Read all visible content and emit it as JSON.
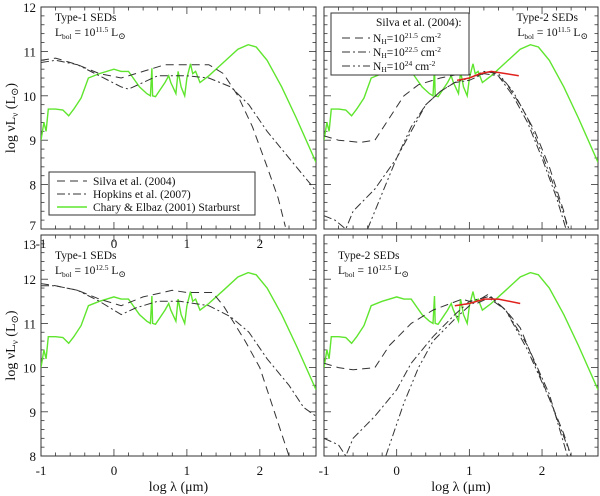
{
  "colors": {
    "starburst": "#5fe52e",
    "model": "#333333",
    "red": "#e0201c"
  },
  "axes": {
    "xlabel": "log λ (μm)",
    "ylabel_parts": {
      "pre": "log νL",
      "sub": "ν",
      "mid": " (L",
      "sun": "⊙",
      "post": ")"
    }
  },
  "legend_type1": [
    {
      "label": "Silva et al. (2004)",
      "style": "dash"
    },
    {
      "label": "Hopkins et al. (2007)",
      "style": "dashdot"
    },
    {
      "label": "Chary & Elbaz (2001) Starburst",
      "style": "solid-green"
    }
  ],
  "legend_type2": {
    "title": "Silva et al. (2004):",
    "items": [
      {
        "pre": "N",
        "sub": "H",
        "eq": "=10",
        "exp": "21.5",
        "unit": " cm",
        "uexp": "-2",
        "style": "dash"
      },
      {
        "pre": "N",
        "sub": "H",
        "eq": "=10",
        "exp": "22.5",
        "unit": " cm",
        "uexp": "-2",
        "style": "dashdot"
      },
      {
        "pre": "N",
        "sub": "H",
        "eq": "=10",
        "exp": "24",
        "unit": " cm",
        "uexp": "-2",
        "style": "dashdotdot"
      }
    ]
  },
  "chart_data": [
    {
      "type": "line",
      "title": "Type-1 SEDs",
      "annotation": {
        "line1": "Type-1 SEDs",
        "l": "L",
        "sub": "bol",
        "eq": " = 10",
        "exp": "11.5",
        "unit": " L",
        "sun": "⊙"
      },
      "xlim": [
        -1,
        2.77
      ],
      "ylim": [
        7,
        12
      ],
      "xticks": [
        "-1",
        "0",
        "1",
        "2"
      ],
      "yticks": [
        "7",
        "8",
        "9",
        "10",
        "11",
        "12"
      ],
      "series": [
        {
          "name": "Chary & Elbaz (2001) Starburst",
          "style": "solid-green",
          "offset": 0
        },
        {
          "name": "Silva et al. (2004)",
          "style": "dash",
          "points": [
            [
              -1,
              10.8
            ],
            [
              -0.8,
              10.85
            ],
            [
              -0.5,
              10.7
            ],
            [
              -0.2,
              10.5
            ],
            [
              0.1,
              10.4
            ],
            [
              0.4,
              10.55
            ],
            [
              0.7,
              10.7
            ],
            [
              1.0,
              10.7
            ],
            [
              1.3,
              10.7
            ],
            [
              1.5,
              10.5
            ],
            [
              1.7,
              10.0
            ],
            [
              1.9,
              9.3
            ],
            [
              2.1,
              8.4
            ],
            [
              2.25,
              7.7
            ],
            [
              2.35,
              7.05
            ]
          ]
        },
        {
          "name": "Hopkins et al. (2007)",
          "style": "dashdot",
          "points": [
            [
              -1,
              10.75
            ],
            [
              -0.8,
              10.8
            ],
            [
              -0.5,
              10.7
            ],
            [
              -0.2,
              10.45
            ],
            [
              0.1,
              10.2
            ],
            [
              0.2,
              10.15
            ],
            [
              0.4,
              10.3
            ],
            [
              0.6,
              10.45
            ],
            [
              1.0,
              10.45
            ],
            [
              1.3,
              10.4
            ],
            [
              1.6,
              10.2
            ],
            [
              1.85,
              9.8
            ],
            [
              2.1,
              9.2
            ],
            [
              2.4,
              8.6
            ],
            [
              2.7,
              8.0
            ],
            [
              2.77,
              7.85
            ]
          ]
        }
      ]
    },
    {
      "type": "line",
      "title": "Type-2 SEDs",
      "annotation": {
        "line1": "Type-2 SEDs",
        "l": "L",
        "sub": "bol",
        "eq": " = 10",
        "exp": "11.5",
        "unit": " L",
        "sun": "⊙"
      },
      "xlim": [
        -1,
        2.77
      ],
      "ylim": [
        7,
        12
      ],
      "xticks": [],
      "yticks": [],
      "series": [
        {
          "name": "Chary & Elbaz (2001) Starburst",
          "style": "solid-green",
          "offset": 0
        },
        {
          "name": "N_H=10^21.5",
          "style": "dash",
          "points": [
            [
              -1,
              9.1
            ],
            [
              -0.8,
              9.0
            ],
            [
              -0.5,
              8.95
            ],
            [
              -0.3,
              9.0
            ],
            [
              -0.1,
              9.5
            ],
            [
              0.1,
              10.0
            ],
            [
              0.3,
              10.25
            ],
            [
              0.6,
              10.4
            ],
            [
              0.9,
              10.5
            ],
            [
              1.1,
              10.45
            ],
            [
              1.3,
              10.55
            ],
            [
              1.5,
              10.3
            ],
            [
              1.7,
              9.8
            ],
            [
              1.9,
              9.2
            ],
            [
              2.1,
              8.4
            ],
            [
              2.3,
              7.4
            ],
            [
              2.35,
              7.0
            ]
          ]
        },
        {
          "name": "N_H=10^22.5",
          "style": "dashdot",
          "points": [
            [
              -1,
              7.3
            ],
            [
              -0.85,
              7.2
            ],
            [
              -0.7,
              7.0
            ],
            [
              -0.6,
              7.4
            ],
            [
              -0.3,
              7.9
            ],
            [
              0,
              8.6
            ],
            [
              0.2,
              9.2
            ],
            [
              0.4,
              9.8
            ],
            [
              0.6,
              10.1
            ],
            [
              0.8,
              10.3
            ],
            [
              1.0,
              10.35
            ],
            [
              1.2,
              10.5
            ],
            [
              1.4,
              10.45
            ],
            [
              1.6,
              10.0
            ],
            [
              1.8,
              9.4
            ],
            [
              2.0,
              8.6
            ],
            [
              2.2,
              7.7
            ],
            [
              2.33,
              7.0
            ]
          ]
        },
        {
          "name": "N_H=10^24",
          "style": "dashdotdot",
          "points": [
            [
              -0.4,
              7.0
            ],
            [
              -0.2,
              7.8
            ],
            [
              0,
              8.6
            ],
            [
              0.2,
              9.3
            ],
            [
              0.4,
              9.8
            ],
            [
              0.6,
              10.1
            ],
            [
              0.8,
              10.3
            ],
            [
              1.0,
              10.4
            ],
            [
              1.2,
              10.55
            ],
            [
              1.4,
              10.5
            ],
            [
              1.6,
              10.1
            ],
            [
              1.8,
              9.5
            ],
            [
              2.0,
              8.7
            ],
            [
              2.2,
              7.8
            ],
            [
              2.37,
              7.0
            ]
          ]
        },
        {
          "name": "observed",
          "style": "red",
          "points": [
            [
              0.83,
              10.35
            ],
            [
              1.0,
              10.4
            ],
            [
              1.15,
              10.5
            ],
            [
              1.3,
              10.55
            ],
            [
              1.5,
              10.5
            ],
            [
              1.68,
              10.45
            ]
          ]
        }
      ]
    },
    {
      "type": "line",
      "title": "Type-1 SEDs",
      "annotation": {
        "line1": "Type-1 SEDs",
        "l": "L",
        "sub": "bol",
        "eq": " = 10",
        "exp": "12.5",
        "unit": " L",
        "sun": "⊙"
      },
      "xlim": [
        -1,
        2.77
      ],
      "ylim": [
        8,
        13
      ],
      "xticks": [
        "-1",
        "0",
        "1",
        "2"
      ],
      "yticks": [
        "8",
        "9",
        "10",
        "11",
        "12",
        "13"
      ],
      "series": [
        {
          "name": "Chary & Elbaz (2001) Starburst",
          "style": "solid-green",
          "offset": 1
        },
        {
          "name": "Silva et al. (2004)",
          "style": "dash",
          "points": [
            [
              -1,
              11.9
            ],
            [
              -0.8,
              11.85
            ],
            [
              -0.5,
              11.75
            ],
            [
              -0.2,
              11.55
            ],
            [
              0.1,
              11.4
            ],
            [
              0.4,
              11.6
            ],
            [
              0.8,
              11.75
            ],
            [
              1.0,
              11.7
            ],
            [
              1.35,
              11.7
            ],
            [
              1.5,
              11.4
            ],
            [
              1.8,
              10.6
            ],
            [
              2.0,
              10.0
            ],
            [
              2.2,
              9.0
            ],
            [
              2.4,
              8.0
            ]
          ]
        },
        {
          "name": "Hopkins et al. (2007)",
          "style": "dashdot",
          "points": [
            [
              -1,
              11.85
            ],
            [
              -0.8,
              11.85
            ],
            [
              -0.5,
              11.75
            ],
            [
              -0.2,
              11.5
            ],
            [
              0.1,
              11.2
            ],
            [
              0.3,
              11.35
            ],
            [
              0.6,
              11.5
            ],
            [
              0.9,
              11.5
            ],
            [
              1.3,
              11.4
            ],
            [
              1.6,
              11.15
            ],
            [
              1.85,
              10.8
            ],
            [
              2.1,
              10.2
            ],
            [
              2.4,
              9.6
            ],
            [
              2.6,
              9.1
            ],
            [
              2.77,
              8.9
            ]
          ]
        }
      ]
    },
    {
      "type": "line",
      "title": "Type-2 SEDs",
      "annotation": {
        "line1": "Type-2 SEDs",
        "l": "L",
        "sub": "bol",
        "eq": " = 10",
        "exp": "12.5",
        "unit": " L",
        "sun": "⊙"
      },
      "xlim": [
        -1,
        2.77
      ],
      "ylim": [
        8,
        13
      ],
      "xticks": [
        "-1",
        "0",
        "1",
        "2"
      ],
      "yticks": [],
      "series": [
        {
          "name": "Chary & Elbaz (2001) Starburst",
          "style": "solid-green",
          "offset": 1
        },
        {
          "name": "N_H=10^21.5",
          "style": "dash",
          "points": [
            [
              -1,
              10.1
            ],
            [
              -0.8,
              10.0
            ],
            [
              -0.6,
              9.95
            ],
            [
              -0.3,
              10.0
            ],
            [
              -0.1,
              10.5
            ],
            [
              0.2,
              11.0
            ],
            [
              0.5,
              11.3
            ],
            [
              0.9,
              11.55
            ],
            [
              1.1,
              11.45
            ],
            [
              1.3,
              11.6
            ],
            [
              1.5,
              11.3
            ],
            [
              1.7,
              10.9
            ],
            [
              1.9,
              10.1
            ],
            [
              2.1,
              9.3
            ],
            [
              2.3,
              8.5
            ],
            [
              2.4,
              8.0
            ]
          ]
        },
        {
          "name": "N_H=10^22.5",
          "style": "dashdot",
          "points": [
            [
              -1,
              8.4
            ],
            [
              -0.8,
              8.25
            ],
            [
              -0.7,
              8.0
            ],
            [
              -0.6,
              8.4
            ],
            [
              -0.3,
              8.9
            ],
            [
              0,
              9.5
            ],
            [
              0.2,
              10.1
            ],
            [
              0.5,
              10.7
            ],
            [
              0.8,
              11.2
            ],
            [
              1.0,
              11.5
            ],
            [
              1.25,
              11.6
            ],
            [
              1.5,
              11.3
            ],
            [
              1.8,
              10.5
            ],
            [
              2.1,
              9.4
            ],
            [
              2.35,
              8.0
            ]
          ]
        },
        {
          "name": "N_H=10^24",
          "style": "dashdotdot",
          "points": [
            [
              -0.15,
              8.0
            ],
            [
              0.1,
              9.2
            ],
            [
              0.3,
              10.0
            ],
            [
              0.5,
              10.6
            ],
            [
              0.8,
              11.1
            ],
            [
              1.0,
              11.4
            ],
            [
              1.25,
              11.65
            ],
            [
              1.5,
              11.3
            ],
            [
              1.8,
              10.4
            ],
            [
              2.1,
              9.3
            ],
            [
              2.4,
              8.0
            ]
          ]
        },
        {
          "name": "observed",
          "style": "red",
          "points": [
            [
              0.8,
              11.4
            ],
            [
              1.0,
              11.45
            ],
            [
              1.2,
              11.55
            ],
            [
              1.4,
              11.55
            ],
            [
              1.7,
              11.45
            ]
          ]
        }
      ]
    }
  ],
  "starburst_template": [
    [
      -1,
      9.0
    ],
    [
      -0.96,
      9.4
    ],
    [
      -0.93,
      9.2
    ],
    [
      -0.9,
      9.7
    ],
    [
      -0.8,
      9.7
    ],
    [
      -0.7,
      9.68
    ],
    [
      -0.62,
      9.55
    ],
    [
      -0.55,
      9.7
    ],
    [
      -0.45,
      9.95
    ],
    [
      -0.35,
      10.4
    ],
    [
      -0.2,
      10.5
    ],
    [
      0,
      10.6
    ],
    [
      0.1,
      10.55
    ],
    [
      0.2,
      10.55
    ],
    [
      0.35,
      10.2
    ],
    [
      0.45,
      10.05
    ],
    [
      0.5,
      10.0
    ],
    [
      0.52,
      10.62
    ],
    [
      0.53,
      10.0
    ],
    [
      0.57,
      9.98
    ],
    [
      0.7,
      10.3
    ],
    [
      0.75,
      10.45
    ],
    [
      0.78,
      10.3
    ],
    [
      0.85,
      10.05
    ],
    [
      0.88,
      10.55
    ],
    [
      0.92,
      10.2
    ],
    [
      0.97,
      10.0
    ],
    [
      1.0,
      10.4
    ],
    [
      1.05,
      10.72
    ],
    [
      1.08,
      10.5
    ],
    [
      1.12,
      10.55
    ],
    [
      1.18,
      10.3
    ],
    [
      1.3,
      10.45
    ],
    [
      1.5,
      10.75
    ],
    [
      1.7,
      11.05
    ],
    [
      1.84,
      11.15
    ],
    [
      1.95,
      11.1
    ],
    [
      2.1,
      10.8
    ],
    [
      2.3,
      10.2
    ],
    [
      2.5,
      9.5
    ],
    [
      2.77,
      8.5
    ]
  ]
}
